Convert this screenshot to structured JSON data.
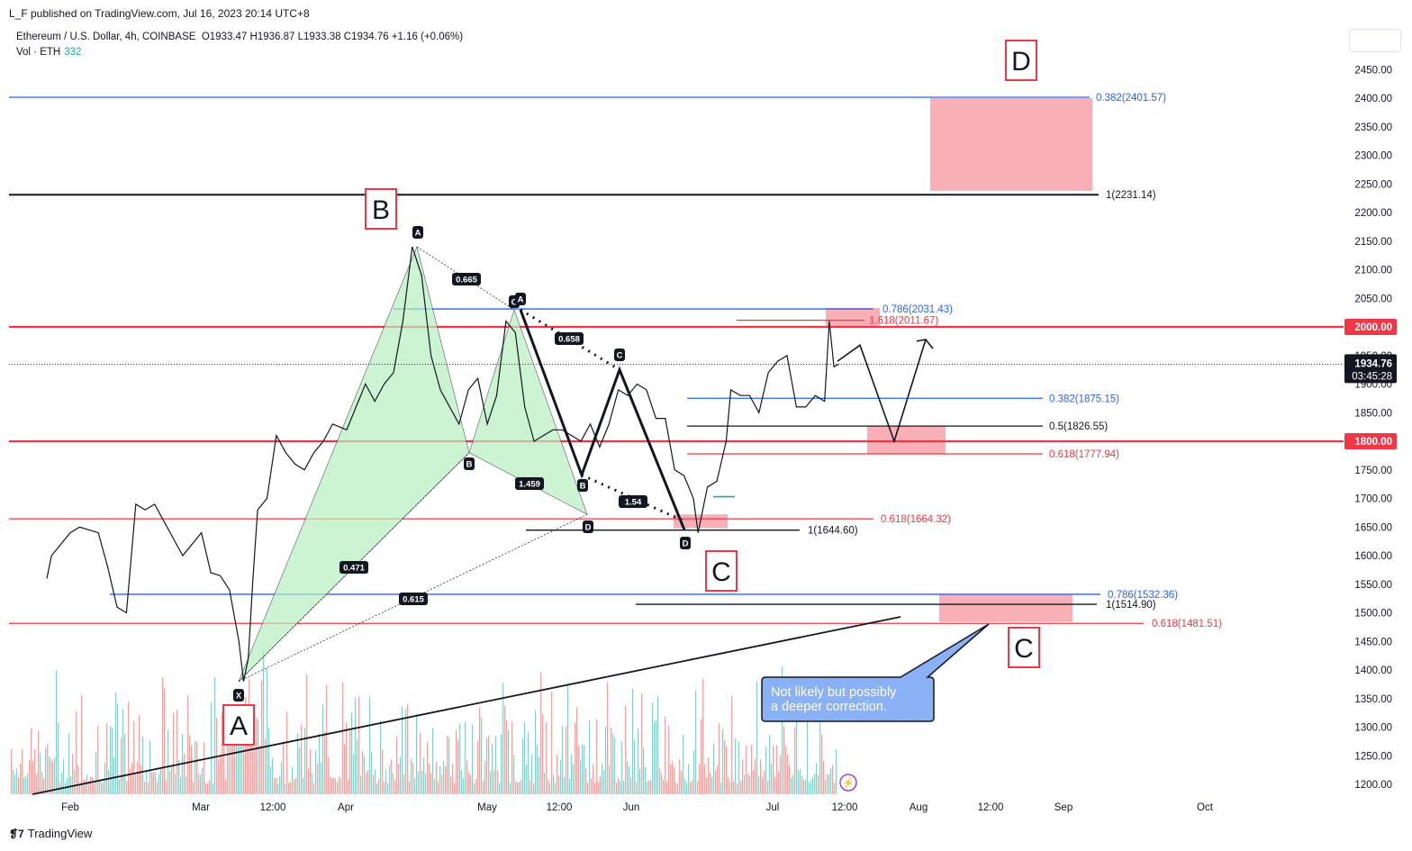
{
  "header": {
    "publisher": "L_F published on TradingView.com, Jul 16, 2023 20:14 UTC+8",
    "symbol": "Ethereum / U.S. Dollar, 4h, COINBASE",
    "ohlc": "O1933.47  H1936.87  L1933.38  C1934.76  +1.16 (+0.06%)",
    "vol_label": "Vol · ETH",
    "vol_value": "332"
  },
  "footer": {
    "brand": "TradingView"
  },
  "colors": {
    "blue": "#2962ff",
    "red": "#f23645",
    "black": "#131722",
    "zone": "#f7a1a8",
    "harmonic_fill": "#b7f0c0",
    "up": "#26a69a",
    "down": "#ef5350"
  },
  "chart_data": {
    "type": "line",
    "title": "Ethereum / U.S. Dollar, 4h, COINBASE",
    "ylim": [
      1180,
      2480
    ],
    "y_ticks": [
      1200,
      1250,
      1300,
      1350,
      1400,
      1450,
      1500,
      1550,
      1600,
      1650,
      1700,
      1750,
      1800,
      1850,
      1900,
      1950,
      2000,
      2050,
      2100,
      2150,
      2200,
      2250,
      2300,
      2350,
      2400,
      2450
    ],
    "x_ticks": [
      "Feb",
      "Mar",
      "12:00",
      "Apr",
      "May",
      "12:00",
      "Jun",
      "Jul",
      "12:00",
      "Aug",
      "12:00",
      "Sep",
      "Oct"
    ],
    "last_price": "1934.76",
    "countdown": "03:45:28",
    "price_badges": [
      "2000.00",
      "1800.00"
    ],
    "horizontal_levels": [
      {
        "label": "0.382(2401.57)",
        "value": 2401.57,
        "color": "blue"
      },
      {
        "label": "1(2231.14)",
        "value": 2231.14,
        "color": "black"
      },
      {
        "label": "0.786(2031.43)",
        "value": 2031.43,
        "color": "blue"
      },
      {
        "label": "1.618(2011.67)",
        "value": 2011.67,
        "color": "red"
      },
      {
        "label": "0.382(1875.15)",
        "value": 1875.15,
        "color": "blue"
      },
      {
        "label": "0.5(1826.55)",
        "value": 1826.55,
        "color": "black"
      },
      {
        "label": "0.618(1777.94)",
        "value": 1777.94,
        "color": "red"
      },
      {
        "label": "0.618(1664.32)",
        "value": 1664.32,
        "color": "red"
      },
      {
        "label": "1(1644.60)",
        "value": 1644.6,
        "color": "black"
      },
      {
        "label": "0.786(1532.36)",
        "value": 1532.36,
        "color": "blue"
      },
      {
        "label": "1(1514.90)",
        "value": 1514.9,
        "color": "black"
      },
      {
        "label": "0.618(1481.51)",
        "value": 1481.51,
        "color": "red"
      }
    ],
    "wave_labels": [
      "A",
      "B",
      "C",
      "D",
      "C"
    ],
    "harmonic_ratios": [
      "0.665",
      "0.658",
      "1.459",
      "1.54",
      "0.471",
      "0.615"
    ],
    "harmonic_points": [
      "X",
      "A",
      "B",
      "C",
      "D",
      "A",
      "B",
      "C",
      "D"
    ],
    "price_series": [
      [
        "Jan 27",
        1560
      ],
      [
        "Jan 28",
        1600
      ],
      [
        "Feb 1",
        1640
      ],
      [
        "Feb 3",
        1650
      ],
      [
        "Feb 7",
        1640
      ],
      [
        "Feb 9",
        1580
      ],
      [
        "Feb 11",
        1510
      ],
      [
        "Feb 13",
        1500
      ],
      [
        "Feb 15",
        1690
      ],
      [
        "Feb 17",
        1680
      ],
      [
        "Feb 19",
        1690
      ],
      [
        "Feb 21",
        1660
      ],
      [
        "Feb 23",
        1630
      ],
      [
        "Feb 25",
        1600
      ],
      [
        "Mar 1",
        1640
      ],
      [
        "Mar 3",
        1570
      ],
      [
        "Mar 5",
        1565
      ],
      [
        "Mar 7",
        1540
      ],
      [
        "Mar 9",
        1450
      ],
      [
        "Mar 10",
        1380
      ],
      [
        "Mar 11",
        1420
      ],
      [
        "Mar 12",
        1560
      ],
      [
        "Mar 13",
        1680
      ],
      [
        "Mar 15",
        1700
      ],
      [
        "Mar 17",
        1810
      ],
      [
        "Mar 19",
        1780
      ],
      [
        "Mar 21",
        1760
      ],
      [
        "Mar 23",
        1750
      ],
      [
        "Mar 25",
        1780
      ],
      [
        "Mar 27",
        1800
      ],
      [
        "Mar 29",
        1830
      ],
      [
        "Apr 1",
        1820
      ],
      [
        "Apr 3",
        1860
      ],
      [
        "Apr 5",
        1900
      ],
      [
        "Apr 7",
        1870
      ],
      [
        "Apr 9",
        1900
      ],
      [
        "Apr 11",
        1920
      ],
      [
        "Apr 13",
        2010
      ],
      [
        "Apr 15",
        2140
      ],
      [
        "Apr 17",
        2090
      ],
      [
        "Apr 19",
        1950
      ],
      [
        "Apr 21",
        1890
      ],
      [
        "Apr 23",
        1860
      ],
      [
        "Apr 25",
        1830
      ],
      [
        "Apr 27",
        1890
      ],
      [
        "Apr 29",
        1910
      ],
      [
        "May 1",
        1830
      ],
      [
        "May 3",
        1880
      ],
      [
        "May 5",
        2010
      ],
      [
        "May 7",
        1990
      ],
      [
        "May 9",
        1860
      ],
      [
        "May 11",
        1800
      ],
      [
        "May 13",
        1810
      ],
      [
        "May 15",
        1820
      ],
      [
        "May 17",
        1820
      ],
      [
        "May 19",
        1810
      ],
      [
        "May 21",
        1800
      ],
      [
        "May 23",
        1830
      ],
      [
        "May 25",
        1790
      ],
      [
        "May 27",
        1830
      ],
      [
        "May 29",
        1890
      ],
      [
        "May 31",
        1880
      ],
      [
        "Jun 2",
        1900
      ],
      [
        "Jun 4",
        1890
      ],
      [
        "Jun 6",
        1840
      ],
      [
        "Jun 8",
        1840
      ],
      [
        "Jun 10",
        1750
      ],
      [
        "Jun 12",
        1740
      ],
      [
        "Jun 14",
        1700
      ],
      [
        "Jun 15",
        1640
      ],
      [
        "Jun 17",
        1720
      ],
      [
        "Jun 19",
        1730
      ],
      [
        "Jun 21",
        1800
      ],
      [
        "Jun 22",
        1890
      ],
      [
        "Jun 24",
        1880
      ],
      [
        "Jun 26",
        1880
      ],
      [
        "Jun 28",
        1850
      ],
      [
        "Jun 30",
        1920
      ],
      [
        "Jul 2",
        1940
      ],
      [
        "Jul 4",
        1950
      ],
      [
        "Jul 6",
        1860
      ],
      [
        "Jul 8",
        1860
      ],
      [
        "Jul 10",
        1880
      ],
      [
        "Jul 12",
        1870
      ],
      [
        "Jul 13",
        2010
      ],
      [
        "Jul 14",
        1930
      ],
      [
        "Jul 15",
        1934.76
      ]
    ],
    "annotation": "Not likely but possibly a deeper correction."
  }
}
